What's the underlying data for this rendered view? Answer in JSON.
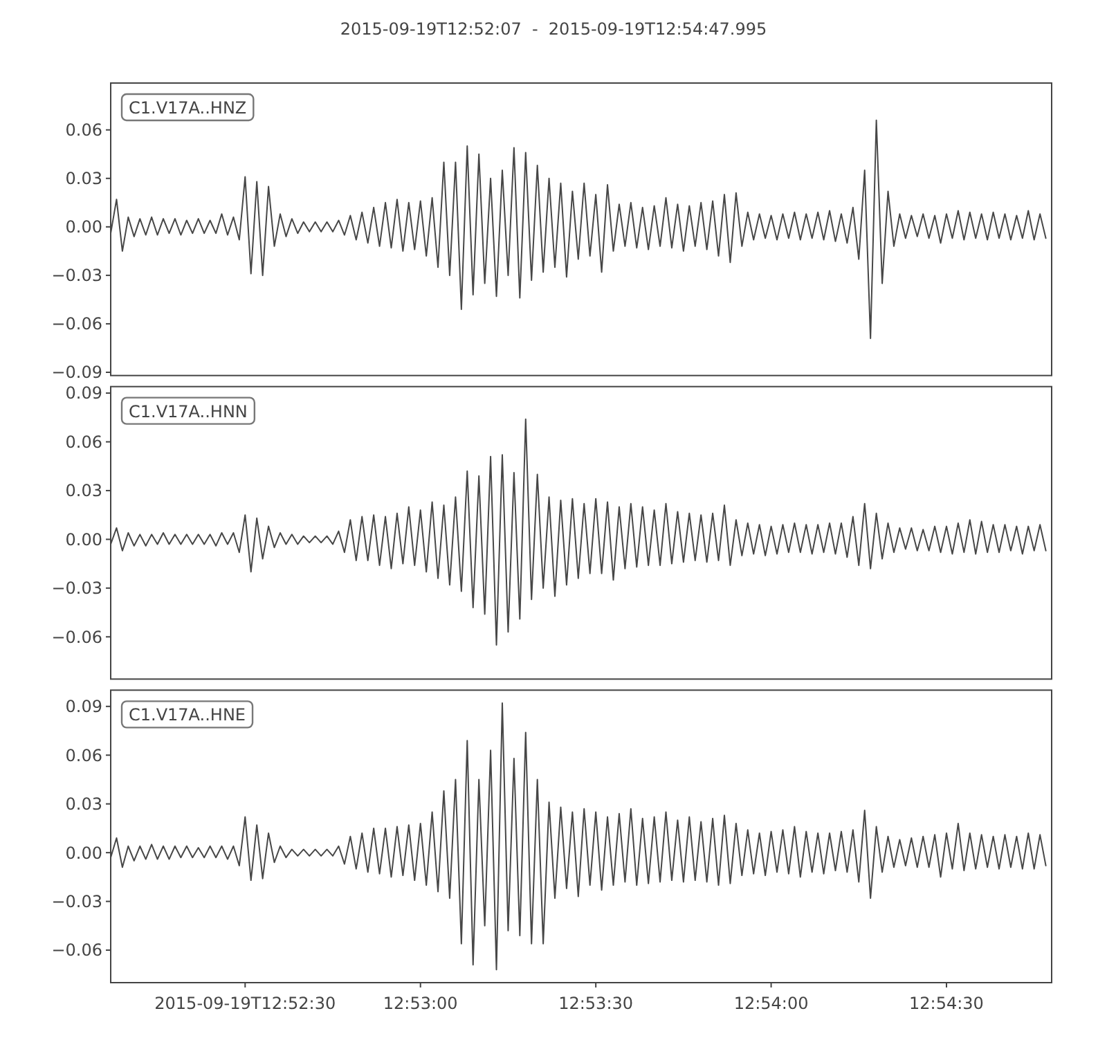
{
  "chart_data": [
    {
      "type": "line",
      "title": "2015-09-19T12:52:07  -  2015-09-19T12:54:47.995",
      "annotations": [
        "C1.V17A..HNZ"
      ],
      "x": [
        "2015-09-19T12:52:07",
        "2015-09-19T12:52:08",
        "2015-09-19T12:52:09",
        "2015-09-19T12:52:10",
        "2015-09-19T12:52:11",
        "2015-09-19T12:52:12",
        "2015-09-19T12:52:13",
        "2015-09-19T12:52:14",
        "2015-09-19T12:52:15",
        "2015-09-19T12:52:16",
        "2015-09-19T12:52:17",
        "2015-09-19T12:52:18",
        "2015-09-19T12:52:19",
        "2015-09-19T12:52:20",
        "2015-09-19T12:52:21",
        "2015-09-19T12:52:22",
        "2015-09-19T12:52:23",
        "2015-09-19T12:52:24",
        "2015-09-19T12:52:25",
        "2015-09-19T12:52:26",
        "2015-09-19T12:52:27",
        "2015-09-19T12:52:28",
        "2015-09-19T12:52:29",
        "2015-09-19T12:52:30",
        "2015-09-19T12:52:31",
        "2015-09-19T12:52:32",
        "2015-09-19T12:52:33",
        "2015-09-19T12:52:34",
        "2015-09-19T12:52:35",
        "2015-09-19T12:52:36",
        "2015-09-19T12:52:37",
        "2015-09-19T12:52:38",
        "2015-09-19T12:52:39",
        "2015-09-19T12:52:40",
        "2015-09-19T12:52:41",
        "2015-09-19T12:52:42",
        "2015-09-19T12:52:43",
        "2015-09-19T12:52:44",
        "2015-09-19T12:52:45",
        "2015-09-19T12:52:46",
        "2015-09-19T12:52:47",
        "2015-09-19T12:52:48",
        "2015-09-19T12:52:49",
        "2015-09-19T12:52:50",
        "2015-09-19T12:52:51",
        "2015-09-19T12:52:52",
        "2015-09-19T12:52:53",
        "2015-09-19T12:52:54",
        "2015-09-19T12:52:55",
        "2015-09-19T12:52:56",
        "2015-09-19T12:52:57",
        "2015-09-19T12:52:58",
        "2015-09-19T12:52:59",
        "2015-09-19T12:53:00",
        "2015-09-19T12:53:01",
        "2015-09-19T12:53:02",
        "2015-09-19T12:53:03",
        "2015-09-19T12:53:04",
        "2015-09-19T12:53:05",
        "2015-09-19T12:53:06",
        "2015-09-19T12:53:07",
        "2015-09-19T12:53:08",
        "2015-09-19T12:53:09",
        "2015-09-19T12:53:10",
        "2015-09-19T12:53:11",
        "2015-09-19T12:53:12",
        "2015-09-19T12:53:13",
        "2015-09-19T12:53:14",
        "2015-09-19T12:53:15",
        "2015-09-19T12:53:16",
        "2015-09-19T12:53:17",
        "2015-09-19T12:53:18",
        "2015-09-19T12:53:19",
        "2015-09-19T12:53:20",
        "2015-09-19T12:53:21",
        "2015-09-19T12:53:22",
        "2015-09-19T12:53:23",
        "2015-09-19T12:53:24",
        "2015-09-19T12:53:25",
        "2015-09-19T12:53:26",
        "2015-09-19T12:53:27",
        "2015-09-19T12:53:28",
        "2015-09-19T12:53:29",
        "2015-09-19T12:53:30",
        "2015-09-19T12:53:31",
        "2015-09-19T12:53:32",
        "2015-09-19T12:53:33",
        "2015-09-19T12:53:34",
        "2015-09-19T12:53:35",
        "2015-09-19T12:53:36",
        "2015-09-19T12:53:37",
        "2015-09-19T12:53:38",
        "2015-09-19T12:53:39",
        "2015-09-19T12:53:40",
        "2015-09-19T12:53:41",
        "2015-09-19T12:53:42",
        "2015-09-19T12:53:43",
        "2015-09-19T12:53:44",
        "2015-09-19T12:53:45",
        "2015-09-19T12:53:46",
        "2015-09-19T12:53:47",
        "2015-09-19T12:53:48",
        "2015-09-19T12:53:49",
        "2015-09-19T12:53:50",
        "2015-09-19T12:53:51",
        "2015-09-19T12:53:52",
        "2015-09-19T12:53:53",
        "2015-09-19T12:53:54",
        "2015-09-19T12:53:55",
        "2015-09-19T12:53:56",
        "2015-09-19T12:53:57",
        "2015-09-19T12:53:58",
        "2015-09-19T12:53:59",
        "2015-09-19T12:54:00",
        "2015-09-19T12:54:01",
        "2015-09-19T12:54:02",
        "2015-09-19T12:54:03",
        "2015-09-19T12:54:04",
        "2015-09-19T12:54:05",
        "2015-09-19T12:54:06",
        "2015-09-19T12:54:07",
        "2015-09-19T12:54:08",
        "2015-09-19T12:54:09",
        "2015-09-19T12:54:10",
        "2015-09-19T12:54:11",
        "2015-09-19T12:54:12",
        "2015-09-19T12:54:13",
        "2015-09-19T12:54:14",
        "2015-09-19T12:54:15",
        "2015-09-19T12:54:16",
        "2015-09-19T12:54:17",
        "2015-09-19T12:54:18",
        "2015-09-19T12:54:19",
        "2015-09-19T12:54:20",
        "2015-09-19T12:54:21",
        "2015-09-19T12:54:22",
        "2015-09-19T12:54:23",
        "2015-09-19T12:54:24",
        "2015-09-19T12:54:25",
        "2015-09-19T12:54:26",
        "2015-09-19T12:54:27",
        "2015-09-19T12:54:28",
        "2015-09-19T12:54:29",
        "2015-09-19T12:54:30",
        "2015-09-19T12:54:31",
        "2015-09-19T12:54:32",
        "2015-09-19T12:54:33",
        "2015-09-19T12:54:34",
        "2015-09-19T12:54:35",
        "2015-09-19T12:54:36",
        "2015-09-19T12:54:37",
        "2015-09-19T12:54:38",
        "2015-09-19T12:54:39",
        "2015-09-19T12:54:40",
        "2015-09-19T12:54:41",
        "2015-09-19T12:54:42",
        "2015-09-19T12:54:43",
        "2015-09-19T12:54:44",
        "2015-09-19T12:54:45",
        "2015-09-19T12:54:46",
        "2015-09-19T12:54:47"
      ],
      "series": [
        {
          "color": "#474747",
          "values": [
            -0.004,
            0.017,
            -0.015,
            0.006,
            -0.006,
            0.005,
            -0.005,
            0.006,
            -0.005,
            0.005,
            -0.004,
            0.005,
            -0.005,
            0.004,
            -0.004,
            0.005,
            -0.004,
            0.004,
            -0.004,
            0.008,
            -0.005,
            0.006,
            -0.008,
            0.031,
            -0.029,
            0.028,
            -0.03,
            0.025,
            -0.012,
            0.008,
            -0.006,
            0.005,
            -0.004,
            0.003,
            -0.003,
            0.003,
            -0.003,
            0.003,
            -0.003,
            0.004,
            -0.005,
            0.007,
            -0.008,
            0.009,
            -0.01,
            0.012,
            -0.012,
            0.015,
            -0.013,
            0.017,
            -0.015,
            0.015,
            -0.014,
            0.016,
            -0.018,
            0.018,
            -0.025,
            0.04,
            -0.03,
            0.04,
            -0.051,
            0.05,
            -0.042,
            0.045,
            -0.035,
            0.03,
            -0.043,
            0.035,
            -0.03,
            0.049,
            -0.044,
            0.046,
            -0.033,
            0.038,
            -0.028,
            0.03,
            -0.025,
            0.027,
            -0.031,
            0.022,
            -0.02,
            0.027,
            -0.018,
            0.02,
            -0.028,
            0.026,
            -0.015,
            0.014,
            -0.012,
            0.015,
            -0.013,
            0.012,
            -0.014,
            0.013,
            -0.012,
            0.018,
            -0.013,
            0.014,
            -0.015,
            0.013,
            -0.012,
            0.015,
            -0.014,
            0.016,
            -0.018,
            0.02,
            -0.022,
            0.021,
            -0.012,
            0.009,
            -0.008,
            0.008,
            -0.007,
            0.007,
            -0.008,
            0.008,
            -0.007,
            0.009,
            -0.008,
            0.008,
            -0.007,
            0.009,
            -0.008,
            0.01,
            -0.009,
            0.008,
            -0.01,
            0.012,
            -0.02,
            0.035,
            -0.069,
            0.066,
            -0.035,
            0.022,
            -0.012,
            0.008,
            -0.007,
            0.007,
            -0.006,
            0.008,
            -0.007,
            0.007,
            -0.01,
            0.008,
            -0.007,
            0.01,
            -0.008,
            0.009,
            -0.007,
            0.008,
            -0.008,
            0.009,
            -0.007,
            0.008,
            -0.008,
            0.007,
            -0.007,
            0.01,
            -0.008,
            0.008,
            -0.007
          ]
        }
      ],
      "xlim": [
        "2015-09-19T12:52:07",
        "2015-09-19T12:54:47.995"
      ],
      "ylim": [
        -0.092,
        0.089
      ],
      "yticks": [
        0.06,
        0.03,
        {
          "value": 0,
          "label": "0.00"
        },
        {
          "value": -0.03,
          "label": "−0.03"
        },
        {
          "value": -0.06,
          "label": "−0.06"
        },
        {
          "value": -0.09,
          "label": "−0.09"
        }
      ],
      "tick_labels": "y"
    },
    {
      "type": "line",
      "annotations": [
        "C1.V17A..HNN"
      ],
      "x": [
        "2015-09-19T12:52:07",
        "2015-09-19T12:52:08",
        "2015-09-19T12:52:09",
        "2015-09-19T12:52:10",
        "2015-09-19T12:52:11",
        "2015-09-19T12:52:12",
        "2015-09-19T12:52:13",
        "2015-09-19T12:52:14",
        "2015-09-19T12:52:15",
        "2015-09-19T12:52:16",
        "2015-09-19T12:52:17",
        "2015-09-19T12:52:18",
        "2015-09-19T12:52:19",
        "2015-09-19T12:52:20",
        "2015-09-19T12:52:21",
        "2015-09-19T12:52:22",
        "2015-09-19T12:52:23",
        "2015-09-19T12:52:24",
        "2015-09-19T12:52:25",
        "2015-09-19T12:52:26",
        "2015-09-19T12:52:27",
        "2015-09-19T12:52:28",
        "2015-09-19T12:52:29",
        "2015-09-19T12:52:30",
        "2015-09-19T12:52:31",
        "2015-09-19T12:52:32",
        "2015-09-19T12:52:33",
        "2015-09-19T12:52:34",
        "2015-09-19T12:52:35",
        "2015-09-19T12:52:36",
        "2015-09-19T12:52:37",
        "2015-09-19T12:52:38",
        "2015-09-19T12:52:39",
        "2015-09-19T12:52:40",
        "2015-09-19T12:52:41",
        "2015-09-19T12:52:42",
        "2015-09-19T12:52:43",
        "2015-09-19T12:52:44",
        "2015-09-19T12:52:45",
        "2015-09-19T12:52:46",
        "2015-09-19T12:52:47",
        "2015-09-19T12:52:48",
        "2015-09-19T12:52:49",
        "2015-09-19T12:52:50",
        "2015-09-19T12:52:51",
        "2015-09-19T12:52:52",
        "2015-09-19T12:52:53",
        "2015-09-19T12:52:54",
        "2015-09-19T12:52:55",
        "2015-09-19T12:52:56",
        "2015-09-19T12:52:57",
        "2015-09-19T12:52:58",
        "2015-09-19T12:52:59",
        "2015-09-19T12:53:00",
        "2015-09-19T12:53:01",
        "2015-09-19T12:53:02",
        "2015-09-19T12:53:03",
        "2015-09-19T12:53:04",
        "2015-09-19T12:53:05",
        "2015-09-19T12:53:06",
        "2015-09-19T12:53:07",
        "2015-09-19T12:53:08",
        "2015-09-19T12:53:09",
        "2015-09-19T12:53:10",
        "2015-09-19T12:53:11",
        "2015-09-19T12:53:12",
        "2015-09-19T12:53:13",
        "2015-09-19T12:53:14",
        "2015-09-19T12:53:15",
        "2015-09-19T12:53:16",
        "2015-09-19T12:53:17",
        "2015-09-19T12:53:18",
        "2015-09-19T12:53:19",
        "2015-09-19T12:53:20",
        "2015-09-19T12:53:21",
        "2015-09-19T12:53:22",
        "2015-09-19T12:53:23",
        "2015-09-19T12:53:24",
        "2015-09-19T12:53:25",
        "2015-09-19T12:53:26",
        "2015-09-19T12:53:27",
        "2015-09-19T12:53:28",
        "2015-09-19T12:53:29",
        "2015-09-19T12:53:30",
        "2015-09-19T12:53:31",
        "2015-09-19T12:53:32",
        "2015-09-19T12:53:33",
        "2015-09-19T12:53:34",
        "2015-09-19T12:53:35",
        "2015-09-19T12:53:36",
        "2015-09-19T12:53:37",
        "2015-09-19T12:53:38",
        "2015-09-19T12:53:39",
        "2015-09-19T12:53:40",
        "2015-09-19T12:53:41",
        "2015-09-19T12:53:42",
        "2015-09-19T12:53:43",
        "2015-09-19T12:53:44",
        "2015-09-19T12:53:45",
        "2015-09-19T12:53:46",
        "2015-09-19T12:53:47",
        "2015-09-19T12:53:48",
        "2015-09-19T12:53:49",
        "2015-09-19T12:53:50",
        "2015-09-19T12:53:51",
        "2015-09-19T12:53:52",
        "2015-09-19T12:53:53",
        "2015-09-19T12:53:54",
        "2015-09-19T12:53:55",
        "2015-09-19T12:53:56",
        "2015-09-19T12:53:57",
        "2015-09-19T12:53:58",
        "2015-09-19T12:53:59",
        "2015-09-19T12:54:00",
        "2015-09-19T12:54:01",
        "2015-09-19T12:54:02",
        "2015-09-19T12:54:03",
        "2015-09-19T12:54:04",
        "2015-09-19T12:54:05",
        "2015-09-19T12:54:06",
        "2015-09-19T12:54:07",
        "2015-09-19T12:54:08",
        "2015-09-19T12:54:09",
        "2015-09-19T12:54:10",
        "2015-09-19T12:54:11",
        "2015-09-19T12:54:12",
        "2015-09-19T12:54:13",
        "2015-09-19T12:54:14",
        "2015-09-19T12:54:15",
        "2015-09-19T12:54:16",
        "2015-09-19T12:54:17",
        "2015-09-19T12:54:18",
        "2015-09-19T12:54:19",
        "2015-09-19T12:54:20",
        "2015-09-19T12:54:21",
        "2015-09-19T12:54:22",
        "2015-09-19T12:54:23",
        "2015-09-19T12:54:24",
        "2015-09-19T12:54:25",
        "2015-09-19T12:54:26",
        "2015-09-19T12:54:27",
        "2015-09-19T12:54:28",
        "2015-09-19T12:54:29",
        "2015-09-19T12:54:30",
        "2015-09-19T12:54:31",
        "2015-09-19T12:54:32",
        "2015-09-19T12:54:33",
        "2015-09-19T12:54:34",
        "2015-09-19T12:54:35",
        "2015-09-19T12:54:36",
        "2015-09-19T12:54:37",
        "2015-09-19T12:54:38",
        "2015-09-19T12:54:39",
        "2015-09-19T12:54:40",
        "2015-09-19T12:54:41",
        "2015-09-19T12:54:42",
        "2015-09-19T12:54:43",
        "2015-09-19T12:54:44",
        "2015-09-19T12:54:45",
        "2015-09-19T12:54:46",
        "2015-09-19T12:54:47"
      ],
      "series": [
        {
          "color": "#474747",
          "values": [
            -0.003,
            0.007,
            -0.007,
            0.004,
            -0.004,
            0.003,
            -0.004,
            0.003,
            -0.003,
            0.004,
            -0.003,
            0.003,
            -0.003,
            0.003,
            -0.003,
            0.003,
            -0.003,
            0.003,
            -0.004,
            0.004,
            -0.003,
            0.004,
            -0.008,
            0.015,
            -0.02,
            0.013,
            -0.012,
            0.008,
            -0.005,
            0.004,
            -0.003,
            0.003,
            -0.003,
            0.002,
            -0.002,
            0.002,
            -0.002,
            0.002,
            -0.003,
            0.005,
            -0.008,
            0.012,
            -0.013,
            0.014,
            -0.013,
            0.015,
            -0.016,
            0.014,
            -0.018,
            0.016,
            -0.015,
            0.02,
            -0.016,
            0.018,
            -0.02,
            0.023,
            -0.024,
            0.021,
            -0.028,
            0.026,
            -0.032,
            0.042,
            -0.042,
            0.039,
            -0.046,
            0.051,
            -0.065,
            0.052,
            -0.057,
            0.041,
            -0.049,
            0.074,
            -0.037,
            0.04,
            -0.03,
            0.026,
            -0.035,
            0.024,
            -0.028,
            0.025,
            -0.024,
            0.022,
            -0.021,
            0.025,
            -0.021,
            0.023,
            -0.025,
            0.02,
            -0.018,
            0.022,
            -0.017,
            0.02,
            -0.016,
            0.018,
            -0.016,
            0.022,
            -0.015,
            0.017,
            -0.014,
            0.016,
            -0.013,
            0.015,
            -0.014,
            0.016,
            -0.013,
            0.021,
            -0.016,
            0.012,
            -0.01,
            0.01,
            -0.009,
            0.009,
            -0.01,
            0.008,
            -0.009,
            0.009,
            -0.008,
            0.01,
            -0.008,
            0.009,
            -0.009,
            0.009,
            -0.008,
            0.01,
            -0.009,
            0.01,
            -0.011,
            0.014,
            -0.016,
            0.022,
            -0.018,
            0.016,
            -0.012,
            0.01,
            -0.008,
            0.007,
            -0.006,
            0.007,
            -0.007,
            0.006,
            -0.007,
            0.008,
            -0.008,
            0.008,
            -0.009,
            0.01,
            -0.008,
            0.012,
            -0.009,
            0.011,
            -0.008,
            0.009,
            -0.008,
            0.009,
            -0.007,
            0.008,
            -0.009,
            0.008,
            -0.007,
            0.009,
            -0.007
          ]
        }
      ],
      "xlim": [
        "2015-09-19T12:52:07",
        "2015-09-19T12:54:47.995"
      ],
      "ylim": [
        -0.086,
        0.094
      ],
      "yticks": [
        0.09,
        0.06,
        0.03,
        {
          "value": 0,
          "label": "0.00"
        },
        {
          "value": -0.03,
          "label": "−0.03"
        },
        {
          "value": -0.06,
          "label": "−0.06"
        }
      ],
      "tick_labels": "y"
    },
    {
      "type": "line",
      "annotations": [
        "C1.V17A..HNE"
      ],
      "x": [
        "2015-09-19T12:52:07",
        "2015-09-19T12:52:08",
        "2015-09-19T12:52:09",
        "2015-09-19T12:52:10",
        "2015-09-19T12:52:11",
        "2015-09-19T12:52:12",
        "2015-09-19T12:52:13",
        "2015-09-19T12:52:14",
        "2015-09-19T12:52:15",
        "2015-09-19T12:52:16",
        "2015-09-19T12:52:17",
        "2015-09-19T12:52:18",
        "2015-09-19T12:52:19",
        "2015-09-19T12:52:20",
        "2015-09-19T12:52:21",
        "2015-09-19T12:52:22",
        "2015-09-19T12:52:23",
        "2015-09-19T12:52:24",
        "2015-09-19T12:52:25",
        "2015-09-19T12:52:26",
        "2015-09-19T12:52:27",
        "2015-09-19T12:52:28",
        "2015-09-19T12:52:29",
        "2015-09-19T12:52:30",
        "2015-09-19T12:52:31",
        "2015-09-19T12:52:32",
        "2015-09-19T12:52:33",
        "2015-09-19T12:52:34",
        "2015-09-19T12:52:35",
        "2015-09-19T12:52:36",
        "2015-09-19T12:52:37",
        "2015-09-19T12:52:38",
        "2015-09-19T12:52:39",
        "2015-09-19T12:52:40",
        "2015-09-19T12:52:41",
        "2015-09-19T12:52:42",
        "2015-09-19T12:52:43",
        "2015-09-19T12:52:44",
        "2015-09-19T12:52:45",
        "2015-09-19T12:52:46",
        "2015-09-19T12:52:47",
        "2015-09-19T12:52:48",
        "2015-09-19T12:52:49",
        "2015-09-19T12:52:50",
        "2015-09-19T12:52:51",
        "2015-09-19T12:52:52",
        "2015-09-19T12:52:53",
        "2015-09-19T12:52:54",
        "2015-09-19T12:52:55",
        "2015-09-19T12:52:56",
        "2015-09-19T12:52:57",
        "2015-09-19T12:52:58",
        "2015-09-19T12:52:59",
        "2015-09-19T12:53:00",
        "2015-09-19T12:53:01",
        "2015-09-19T12:53:02",
        "2015-09-19T12:53:03",
        "2015-09-19T12:53:04",
        "2015-09-19T12:53:05",
        "2015-09-19T12:53:06",
        "2015-09-19T12:53:07",
        "2015-09-19T12:53:08",
        "2015-09-19T12:53:09",
        "2015-09-19T12:53:10",
        "2015-09-19T12:53:11",
        "2015-09-19T12:53:12",
        "2015-09-19T12:53:13",
        "2015-09-19T12:53:14",
        "2015-09-19T12:53:15",
        "2015-09-19T12:53:16",
        "2015-09-19T12:53:17",
        "2015-09-19T12:53:18",
        "2015-09-19T12:53:19",
        "2015-09-19T12:53:20",
        "2015-09-19T12:53:21",
        "2015-09-19T12:53:22",
        "2015-09-19T12:53:23",
        "2015-09-19T12:53:24",
        "2015-09-19T12:53:25",
        "2015-09-19T12:53:26",
        "2015-09-19T12:53:27",
        "2015-09-19T12:53:28",
        "2015-09-19T12:53:29",
        "2015-09-19T12:53:30",
        "2015-09-19T12:53:31",
        "2015-09-19T12:53:32",
        "2015-09-19T12:53:33",
        "2015-09-19T12:53:34",
        "2015-09-19T12:53:35",
        "2015-09-19T12:53:36",
        "2015-09-19T12:53:37",
        "2015-09-19T12:53:38",
        "2015-09-19T12:53:39",
        "2015-09-19T12:53:40",
        "2015-09-19T12:53:41",
        "2015-09-19T12:53:42",
        "2015-09-19T12:53:43",
        "2015-09-19T12:53:44",
        "2015-09-19T12:53:45",
        "2015-09-19T12:53:46",
        "2015-09-19T12:53:47",
        "2015-09-19T12:53:48",
        "2015-09-19T12:53:49",
        "2015-09-19T12:53:50",
        "2015-09-19T12:53:51",
        "2015-09-19T12:53:52",
        "2015-09-19T12:53:53",
        "2015-09-19T12:53:54",
        "2015-09-19T12:53:55",
        "2015-09-19T12:53:56",
        "2015-09-19T12:53:57",
        "2015-09-19T12:53:58",
        "2015-09-19T12:53:59",
        "2015-09-19T12:54:00",
        "2015-09-19T12:54:01",
        "2015-09-19T12:54:02",
        "2015-09-19T12:54:03",
        "2015-09-19T12:54:04",
        "2015-09-19T12:54:05",
        "2015-09-19T12:54:06",
        "2015-09-19T12:54:07",
        "2015-09-19T12:54:08",
        "2015-09-19T12:54:09",
        "2015-09-19T12:54:10",
        "2015-09-19T12:54:11",
        "2015-09-19T12:54:12",
        "2015-09-19T12:54:13",
        "2015-09-19T12:54:14",
        "2015-09-19T12:54:15",
        "2015-09-19T12:54:16",
        "2015-09-19T12:54:17",
        "2015-09-19T12:54:18",
        "2015-09-19T12:54:19",
        "2015-09-19T12:54:20",
        "2015-09-19T12:54:21",
        "2015-09-19T12:54:22",
        "2015-09-19T12:54:23",
        "2015-09-19T12:54:24",
        "2015-09-19T12:54:25",
        "2015-09-19T12:54:26",
        "2015-09-19T12:54:27",
        "2015-09-19T12:54:28",
        "2015-09-19T12:54:29",
        "2015-09-19T12:54:30",
        "2015-09-19T12:54:31",
        "2015-09-19T12:54:32",
        "2015-09-19T12:54:33",
        "2015-09-19T12:54:34",
        "2015-09-19T12:54:35",
        "2015-09-19T12:54:36",
        "2015-09-19T12:54:37",
        "2015-09-19T12:54:38",
        "2015-09-19T12:54:39",
        "2015-09-19T12:54:40",
        "2015-09-19T12:54:41",
        "2015-09-19T12:54:42",
        "2015-09-19T12:54:43",
        "2015-09-19T12:54:44",
        "2015-09-19T12:54:45",
        "2015-09-19T12:54:46",
        "2015-09-19T12:54:47"
      ],
      "series": [
        {
          "color": "#474747",
          "values": [
            -0.003,
            0.009,
            -0.009,
            0.004,
            -0.005,
            0.004,
            -0.004,
            0.005,
            -0.004,
            0.004,
            -0.004,
            0.004,
            -0.003,
            0.004,
            -0.003,
            0.003,
            -0.003,
            0.004,
            -0.003,
            0.004,
            -0.004,
            0.004,
            -0.008,
            0.022,
            -0.017,
            0.017,
            -0.016,
            0.012,
            -0.006,
            0.004,
            -0.003,
            0.002,
            -0.002,
            0.002,
            -0.002,
            0.002,
            -0.002,
            0.002,
            -0.002,
            0.004,
            -0.007,
            0.01,
            -0.01,
            0.012,
            -0.012,
            0.015,
            -0.013,
            0.015,
            -0.015,
            0.016,
            -0.014,
            0.017,
            -0.017,
            0.018,
            -0.02,
            0.025,
            -0.024,
            0.038,
            -0.028,
            0.045,
            -0.056,
            0.069,
            -0.069,
            0.045,
            -0.045,
            0.063,
            -0.072,
            0.092,
            -0.048,
            0.058,
            -0.051,
            0.074,
            -0.056,
            0.045,
            -0.056,
            0.031,
            -0.028,
            0.028,
            -0.022,
            0.025,
            -0.027,
            0.027,
            -0.02,
            0.025,
            -0.023,
            0.022,
            -0.02,
            0.024,
            -0.018,
            0.027,
            -0.02,
            0.021,
            -0.019,
            0.022,
            -0.018,
            0.025,
            -0.017,
            0.02,
            -0.018,
            0.022,
            -0.017,
            0.019,
            -0.018,
            0.021,
            -0.02,
            0.023,
            -0.019,
            0.018,
            -0.014,
            0.014,
            -0.013,
            0.012,
            -0.014,
            0.013,
            -0.012,
            0.014,
            -0.013,
            0.016,
            -0.015,
            0.013,
            -0.012,
            0.012,
            -0.013,
            0.012,
            -0.011,
            0.013,
            -0.012,
            0.014,
            -0.018,
            0.026,
            -0.028,
            0.016,
            -0.012,
            0.01,
            -0.009,
            0.008,
            -0.008,
            0.009,
            -0.009,
            0.01,
            -0.009,
            0.011,
            -0.015,
            0.012,
            -0.01,
            0.018,
            -0.011,
            0.012,
            -0.01,
            0.011,
            -0.009,
            0.01,
            -0.01,
            0.011,
            -0.009,
            0.01,
            -0.01,
            0.012,
            -0.01,
            0.011,
            -0.008
          ]
        }
      ],
      "xlim": [
        "2015-09-19T12:52:07",
        "2015-09-19T12:54:47.995"
      ],
      "xticks": [
        {
          "value": "2015-09-19T12:52:30",
          "label": "2015-09-19T12:52:30"
        },
        {
          "value": "2015-09-19T12:53:00",
          "label": "12:53:00"
        },
        {
          "value": "2015-09-19T12:53:30",
          "label": "12:53:30"
        },
        {
          "value": "2015-09-19T12:54:00",
          "label": "12:54:00"
        },
        {
          "value": "2015-09-19T12:54:30",
          "label": "12:54:30"
        }
      ],
      "ylim": [
        -0.08,
        0.1
      ],
      "yticks": [
        0.09,
        0.06,
        0.03,
        {
          "value": 0,
          "label": "0.00"
        },
        {
          "value": -0.03,
          "label": "−0.03"
        },
        {
          "value": -0.06,
          "label": "−0.06"
        }
      ]
    }
  ]
}
